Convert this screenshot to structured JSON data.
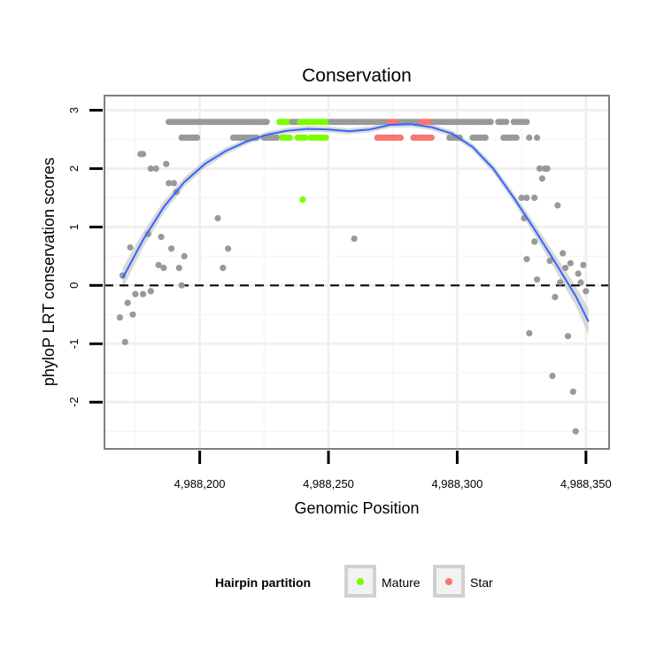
{
  "chart_data": {
    "type": "scatter",
    "title": "Conservation",
    "xlabel": "Genomic Position",
    "ylabel": "phyloP LRT conservation scores",
    "xlim": [
      4988163,
      4988359
    ],
    "ylim": [
      -2.8,
      3.25
    ],
    "x_ticks": [
      4988200,
      4988250,
      4988300,
      4988350
    ],
    "x_tick_labels": [
      "4,988,200",
      "4,988,250",
      "4,988,300",
      "4,988,350"
    ],
    "y_ticks": [
      -2,
      -1,
      0,
      1,
      2,
      3
    ],
    "y_tick_labels": [
      "-2",
      "-1",
      "0",
      "1",
      "2",
      "3"
    ],
    "reference_line": {
      "y": 0,
      "style": "dashed"
    },
    "grid": true,
    "legend": {
      "title": "Hairpin partition",
      "position": "bottom",
      "entries": [
        {
          "label": "Mature",
          "color": "#7cfc00"
        },
        {
          "label": "Star",
          "color": "#f8766d"
        }
      ]
    },
    "colors": {
      "other": "#999999",
      "Mature": "#7cfc00",
      "Star": "#f8766d",
      "smooth_line": "#3366ff",
      "ribbon": "#cccccc"
    },
    "band_segments": [
      {
        "x_from": 4988188,
        "x_to": 4988226,
        "y": 2.8,
        "group": "other"
      },
      {
        "x_from": 4988231,
        "x_to": 4988235,
        "y": 2.8,
        "group": "Mature"
      },
      {
        "x_from": 4988236,
        "x_to": 4988238,
        "y": 2.8,
        "group": "other"
      },
      {
        "x_from": 4988239,
        "x_to": 4988250,
        "y": 2.8,
        "group": "Mature"
      },
      {
        "x_from": 4988251,
        "x_to": 4988273,
        "y": 2.8,
        "group": "other"
      },
      {
        "x_from": 4988274,
        "x_to": 4988277,
        "y": 2.8,
        "group": "Star"
      },
      {
        "x_from": 4988278,
        "x_to": 4988285,
        "y": 2.8,
        "group": "other"
      },
      {
        "x_from": 4988286,
        "x_to": 4988290,
        "y": 2.8,
        "group": "Star"
      },
      {
        "x_from": 4988291,
        "x_to": 4988313,
        "y": 2.8,
        "group": "other"
      },
      {
        "x_from": 4988316,
        "x_to": 4988319,
        "y": 2.8,
        "group": "other"
      },
      {
        "x_from": 4988322,
        "x_to": 4988327,
        "y": 2.8,
        "group": "other"
      },
      {
        "x_from": 4988193,
        "x_to": 4988199,
        "y": 2.53,
        "group": "other"
      },
      {
        "x_from": 4988213,
        "x_to": 4988222,
        "y": 2.53,
        "group": "other"
      },
      {
        "x_from": 4988225,
        "x_to": 4988230,
        "y": 2.53,
        "group": "other"
      },
      {
        "x_from": 4988232,
        "x_to": 4988235,
        "y": 2.53,
        "group": "Mature"
      },
      {
        "x_from": 4988238,
        "x_to": 4988241,
        "y": 2.53,
        "group": "Mature"
      },
      {
        "x_from": 4988243,
        "x_to": 4988249,
        "y": 2.53,
        "group": "Mature"
      },
      {
        "x_from": 4988269,
        "x_to": 4988278,
        "y": 2.53,
        "group": "Star"
      },
      {
        "x_from": 4988283,
        "x_to": 4988290,
        "y": 2.53,
        "group": "Star"
      },
      {
        "x_from": 4988297,
        "x_to": 4988301,
        "y": 2.53,
        "group": "other"
      },
      {
        "x_from": 4988306,
        "x_to": 4988311,
        "y": 2.53,
        "group": "other"
      },
      {
        "x_from": 4988318,
        "x_to": 4988323,
        "y": 2.53,
        "group": "other"
      }
    ],
    "points": [
      {
        "x": 4988240,
        "y": 1.47,
        "group": "Mature"
      },
      {
        "x": 4988169,
        "y": -0.55
      },
      {
        "x": 4988170,
        "y": 0.17
      },
      {
        "x": 4988171,
        "y": -0.97
      },
      {
        "x": 4988172,
        "y": -0.3
      },
      {
        "x": 4988173,
        "y": 0.65
      },
      {
        "x": 4988174,
        "y": -0.5
      },
      {
        "x": 4988175,
        "y": -0.15
      },
      {
        "x": 4988177,
        "y": 2.25
      },
      {
        "x": 4988178,
        "y": 2.25
      },
      {
        "x": 4988178,
        "y": -0.15
      },
      {
        "x": 4988180,
        "y": 0.88
      },
      {
        "x": 4988181,
        "y": 2.0
      },
      {
        "x": 4988181,
        "y": -0.1
      },
      {
        "x": 4988183,
        "y": 2.0
      },
      {
        "x": 4988184,
        "y": 0.35
      },
      {
        "x": 4988185,
        "y": 0.83
      },
      {
        "x": 4988186,
        "y": 0.3
      },
      {
        "x": 4988187,
        "y": 2.08
      },
      {
        "x": 4988188,
        "y": 1.75
      },
      {
        "x": 4988189,
        "y": 0.63
      },
      {
        "x": 4988190,
        "y": 1.75
      },
      {
        "x": 4988191,
        "y": 1.6
      },
      {
        "x": 4988192,
        "y": 0.3
      },
      {
        "x": 4988193,
        "y": 0.0
      },
      {
        "x": 4988194,
        "y": 0.5
      },
      {
        "x": 4988207,
        "y": 1.15
      },
      {
        "x": 4988209,
        "y": 0.3
      },
      {
        "x": 4988211,
        "y": 0.63
      },
      {
        "x": 4988260,
        "y": 0.8
      },
      {
        "x": 4988325,
        "y": 1.5
      },
      {
        "x": 4988327,
        "y": 1.5
      },
      {
        "x": 4988328,
        "y": 2.53
      },
      {
        "x": 4988330,
        "y": 1.5
      },
      {
        "x": 4988331,
        "y": 2.53
      },
      {
        "x": 4988332,
        "y": 2.0
      },
      {
        "x": 4988333,
        "y": 1.83
      },
      {
        "x": 4988334,
        "y": 2.0
      },
      {
        "x": 4988335,
        "y": 2.0
      },
      {
        "x": 4988326,
        "y": 1.15
      },
      {
        "x": 4988327,
        "y": 0.45
      },
      {
        "x": 4988328,
        "y": -0.82
      },
      {
        "x": 4988330,
        "y": 0.75
      },
      {
        "x": 4988331,
        "y": 0.1
      },
      {
        "x": 4988336,
        "y": 0.42
      },
      {
        "x": 4988337,
        "y": -1.55
      },
      {
        "x": 4988338,
        "y": -0.2
      },
      {
        "x": 4988339,
        "y": 1.37
      },
      {
        "x": 4988340,
        "y": 0.05
      },
      {
        "x": 4988341,
        "y": 0.55
      },
      {
        "x": 4988342,
        "y": 0.3
      },
      {
        "x": 4988343,
        "y": -0.87
      },
      {
        "x": 4988344,
        "y": 0.38
      },
      {
        "x": 4988345,
        "y": -1.82
      },
      {
        "x": 4988346,
        "y": -2.5
      },
      {
        "x": 4988347,
        "y": 0.2
      },
      {
        "x": 4988348,
        "y": 0.05
      },
      {
        "x": 4988349,
        "y": 0.35
      },
      {
        "x": 4988350,
        "y": -0.1
      },
      {
        "x": 4988319,
        "y": 2.53
      }
    ],
    "smooth": {
      "x": [
        4988170,
        4988178,
        4988186,
        4988194,
        4988202,
        4988210,
        4988218,
        4988226,
        4988234,
        4988242,
        4988250,
        4988258,
        4988266,
        4988274,
        4988282,
        4988290,
        4988298,
        4988306,
        4988314,
        4988322,
        4988330,
        4988338,
        4988346,
        4988351
      ],
      "y": [
        0.12,
        0.78,
        1.34,
        1.77,
        2.08,
        2.3,
        2.46,
        2.58,
        2.65,
        2.68,
        2.67,
        2.64,
        2.67,
        2.75,
        2.76,
        2.71,
        2.6,
        2.37,
        2.0,
        1.5,
        0.96,
        0.4,
        -0.18,
        -0.62
      ],
      "se": [
        0.18,
        0.13,
        0.1,
        0.08,
        0.07,
        0.06,
        0.05,
        0.05,
        0.05,
        0.05,
        0.05,
        0.05,
        0.05,
        0.05,
        0.05,
        0.05,
        0.05,
        0.06,
        0.07,
        0.08,
        0.1,
        0.13,
        0.17,
        0.22
      ]
    }
  }
}
